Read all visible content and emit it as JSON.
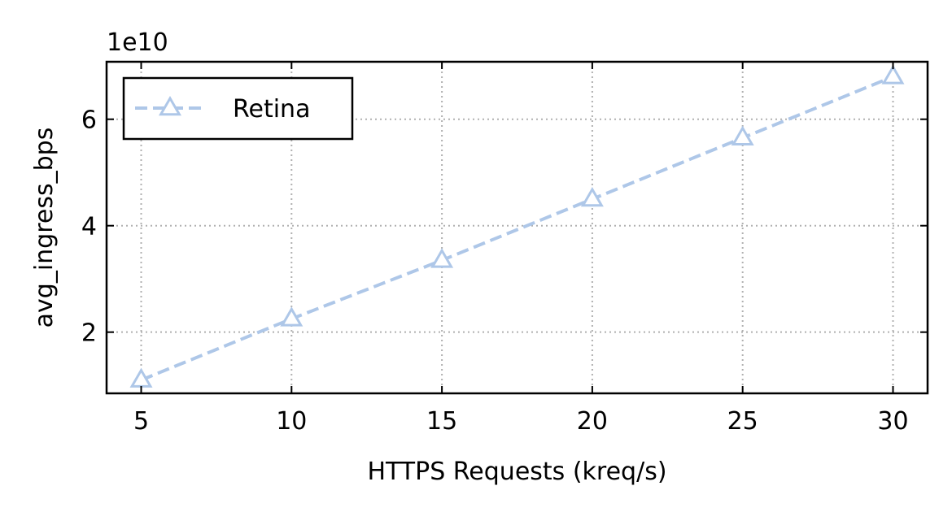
{
  "chart_data": {
    "type": "line",
    "title": "",
    "xlabel": "HTTPS Requests (kreq/s)",
    "ylabel": "avg_ingress_bps",
    "y_offset_label": "1e10",
    "x": [
      5,
      10,
      15,
      20,
      25,
      30
    ],
    "xticks": [
      5,
      10,
      15,
      20,
      25,
      30
    ],
    "xtick_labels": [
      "5",
      "10",
      "15",
      "20",
      "25",
      "30"
    ],
    "yticks": [
      2,
      4,
      6
    ],
    "ytick_labels": [
      "2",
      "4",
      "6"
    ],
    "xlim": [
      3.85,
      31.15
    ],
    "ylim": [
      0.85,
      7.08
    ],
    "grid": true,
    "legend_position": "top-left",
    "series": [
      {
        "name": "Retina",
        "values": [
          1.1,
          2.25,
          3.35,
          4.5,
          5.65,
          6.8
        ],
        "color": "#aec7e8",
        "line_style": "dashed",
        "marker": "open-triangle"
      }
    ]
  }
}
